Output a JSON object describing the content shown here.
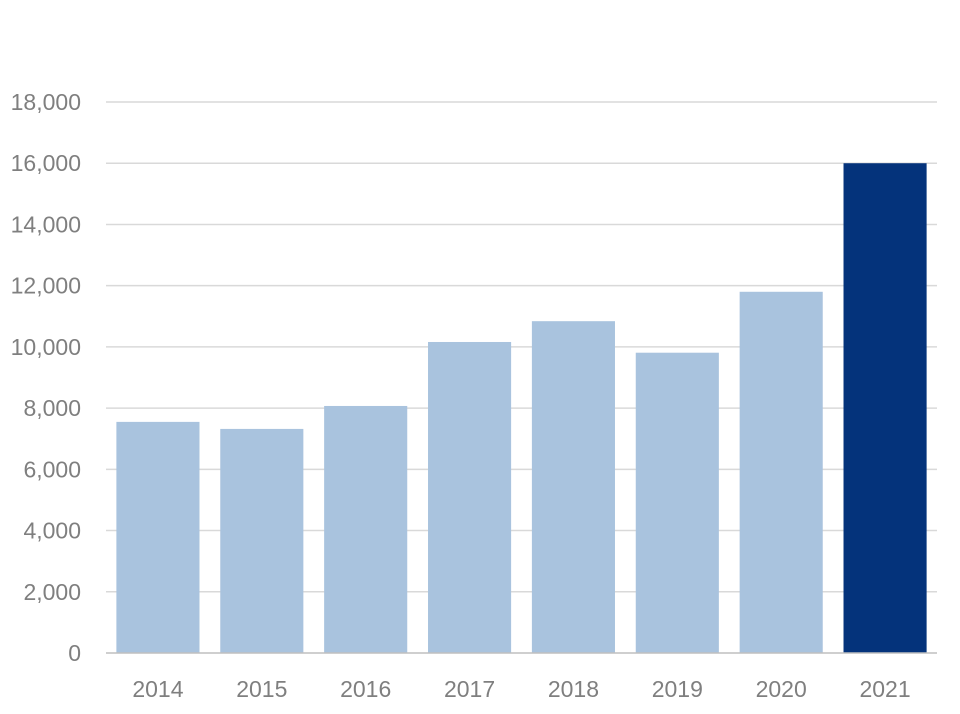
{
  "chart_data": {
    "type": "bar",
    "title": "",
    "xlabel": "",
    "ylabel": "",
    "categories": [
      "2014",
      "2015",
      "2016",
      "2017",
      "2018",
      "2019",
      "2020",
      "2021"
    ],
    "values": [
      7550,
      7320,
      8070,
      10160,
      10840,
      9810,
      11800,
      16000
    ],
    "ylim": [
      0,
      18000
    ],
    "yticks": [
      0,
      2000,
      4000,
      6000,
      8000,
      10000,
      12000,
      14000,
      16000,
      18000
    ],
    "ytick_labels": [
      "0",
      "2,000",
      "4,000",
      "6,000",
      "8,000",
      "10,000",
      "12,000",
      "14,000",
      "16,000",
      "18,000"
    ],
    "grid": true,
    "colors": {
      "default_bar": "#a9c3de",
      "highlight_bar": "#04337b"
    },
    "highlight_index": 7
  }
}
